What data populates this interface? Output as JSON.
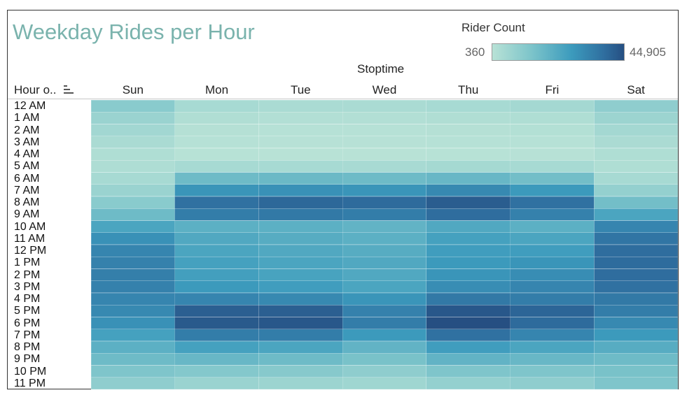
{
  "chart_data": {
    "type": "heatmap",
    "title": "Weekday Rides per Hour",
    "column_axis_title": "Stoptime",
    "row_header": "Hour o..",
    "legend": {
      "title": "Rider Count",
      "min_label": "360",
      "max_label": "44,905",
      "min": 360,
      "max": 44905,
      "colors": [
        "#b8e2d6",
        "#7cc4ca",
        "#3c9bbd",
        "#2f6e9f",
        "#264f82"
      ]
    },
    "columns": [
      "Sun",
      "Mon",
      "Tue",
      "Wed",
      "Thu",
      "Fri",
      "Sat"
    ],
    "rows": [
      "12 AM",
      "1 AM",
      "2 AM",
      "3 AM",
      "4 AM",
      "5 AM",
      "6 AM",
      "7 AM",
      "8 AM",
      "9 AM",
      "10 AM",
      "11 AM",
      "12 PM",
      "1 PM",
      "2 PM",
      "3 PM",
      "4 PM",
      "5 PM",
      "6 PM",
      "7 PM",
      "8 PM",
      "9 PM",
      "10 PM",
      "11 PM"
    ],
    "values": [
      [
        9000,
        3500,
        3000,
        3000,
        3500,
        4000,
        8000
      ],
      [
        6000,
        1800,
        1500,
        1500,
        1800,
        2000,
        5500
      ],
      [
        4500,
        1000,
        800,
        800,
        1000,
        1200,
        4000
      ],
      [
        3000,
        700,
        600,
        600,
        700,
        800,
        2800
      ],
      [
        2000,
        500,
        400,
        360,
        500,
        600,
        2000
      ],
      [
        2200,
        3500,
        3500,
        3300,
        3800,
        3500,
        2000
      ],
      [
        3500,
        14000,
        14500,
        14000,
        15000,
        13000,
        3500
      ],
      [
        6000,
        24000,
        25000,
        24000,
        27000,
        23000,
        7000
      ],
      [
        9000,
        33000,
        36000,
        35000,
        40000,
        33000,
        13000
      ],
      [
        14000,
        30000,
        31000,
        30000,
        34000,
        29000,
        20000
      ],
      [
        20000,
        17000,
        17000,
        16000,
        19000,
        17000,
        28000
      ],
      [
        25000,
        19000,
        18000,
        17000,
        21000,
        20000,
        32000
      ],
      [
        28000,
        20000,
        19000,
        18000,
        22000,
        22000,
        34000
      ],
      [
        29000,
        21000,
        20000,
        19000,
        23000,
        24000,
        34500
      ],
      [
        29500,
        21500,
        20500,
        19000,
        24000,
        26000,
        34000
      ],
      [
        29000,
        23000,
        22000,
        20000,
        26000,
        28000,
        33000
      ],
      [
        28000,
        28000,
        27000,
        24000,
        31000,
        30000,
        31000
      ],
      [
        27000,
        39000,
        39000,
        29000,
        42000,
        37000,
        30000
      ],
      [
        25000,
        41000,
        42000,
        30000,
        44905,
        35000,
        27000
      ],
      [
        21000,
        30000,
        30000,
        23000,
        33000,
        28000,
        23000
      ],
      [
        17000,
        21000,
        20000,
        16000,
        22000,
        20000,
        18000
      ],
      [
        14000,
        15000,
        14000,
        12000,
        16000,
        15000,
        14000
      ],
      [
        11000,
        10000,
        9500,
        8000,
        11000,
        11000,
        12000
      ],
      [
        8000,
        6000,
        5500,
        5000,
        7000,
        8000,
        11000
      ]
    ]
  }
}
